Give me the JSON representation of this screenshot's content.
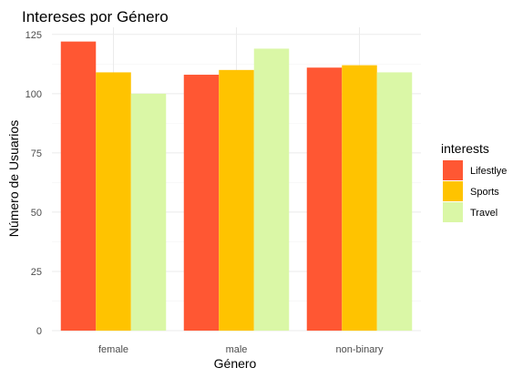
{
  "chart_data": {
    "type": "bar",
    "title": "Intereses por Género",
    "xlabel": "Género",
    "ylabel": "Número de Usuarios",
    "categories": [
      "female",
      "male",
      "non-binary"
    ],
    "series": [
      {
        "name": "Lifestlye",
        "values": [
          122,
          108,
          111
        ],
        "color": "#ff5733"
      },
      {
        "name": "Sports",
        "values": [
          109,
          110,
          112
        ],
        "color": "#ffc300"
      },
      {
        "name": "Travel",
        "values": [
          100,
          119,
          109
        ],
        "color": "#daf7a6"
      }
    ],
    "ylim": [
      0,
      128
    ],
    "yticks": [
      0,
      25,
      50,
      75,
      100,
      125
    ],
    "legend_title": "interests",
    "legend_position": "right",
    "grid": true
  }
}
